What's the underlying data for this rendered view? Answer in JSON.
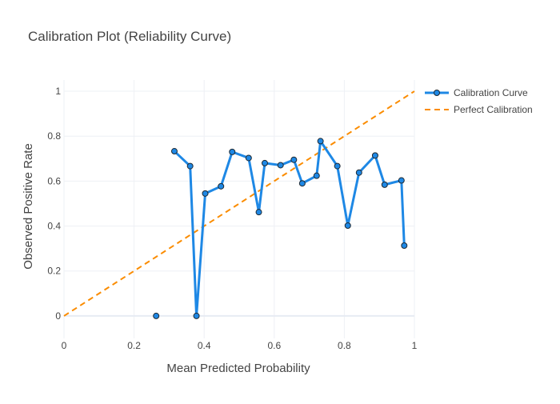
{
  "chart_data": {
    "type": "line",
    "title": "Calibration Plot (Reliability Curve)",
    "xlabel": "Mean Predicted Probability",
    "ylabel": "Observed Positive Rate",
    "xlim": [
      0,
      1
    ],
    "ylim": [
      -0.1,
      1.05
    ],
    "xticks": [
      0,
      0.2,
      0.4,
      0.6,
      0.8,
      1
    ],
    "xtick_labels": [
      "0",
      "0.2",
      "0.4",
      "0.6",
      "0.8",
      "1"
    ],
    "yticks": [
      0,
      0.2,
      0.4,
      0.6,
      0.8,
      1
    ],
    "ytick_labels": [
      "0",
      "0.2",
      "0.4",
      "0.6",
      "0.8",
      "1"
    ],
    "grid": true,
    "legend_position": "top-right",
    "series": [
      {
        "name": "Calibration Curve",
        "color": "#1e88e5",
        "style": "lines+markers",
        "points": [
          {
            "x": 0.263,
            "y": 0.0
          },
          {
            "x": 0.315,
            "y": 0.733
          },
          {
            "x": 0.36,
            "y": 0.667
          },
          {
            "x": 0.378,
            "y": 0.0
          },
          {
            "x": 0.403,
            "y": 0.545
          },
          {
            "x": 0.448,
            "y": 0.577
          },
          {
            "x": 0.48,
            "y": 0.73
          },
          {
            "x": 0.527,
            "y": 0.703
          },
          {
            "x": 0.556,
            "y": 0.462
          },
          {
            "x": 0.573,
            "y": 0.68
          },
          {
            "x": 0.618,
            "y": 0.671
          },
          {
            "x": 0.656,
            "y": 0.695
          },
          {
            "x": 0.68,
            "y": 0.59
          },
          {
            "x": 0.721,
            "y": 0.624
          },
          {
            "x": 0.732,
            "y": 0.778
          },
          {
            "x": 0.78,
            "y": 0.667
          },
          {
            "x": 0.81,
            "y": 0.402
          },
          {
            "x": 0.842,
            "y": 0.638
          },
          {
            "x": 0.888,
            "y": 0.714
          },
          {
            "x": 0.915,
            "y": 0.584
          },
          {
            "x": 0.963,
            "y": 0.603
          },
          {
            "x": 0.971,
            "y": 0.313
          }
        ],
        "breaks_after_index": [
          0
        ]
      },
      {
        "name": "Perfect Calibration",
        "color": "#fb8c00",
        "style": "dashed-line",
        "points": [
          {
            "x": 0,
            "y": 0
          },
          {
            "x": 1,
            "y": 1
          }
        ]
      }
    ]
  }
}
